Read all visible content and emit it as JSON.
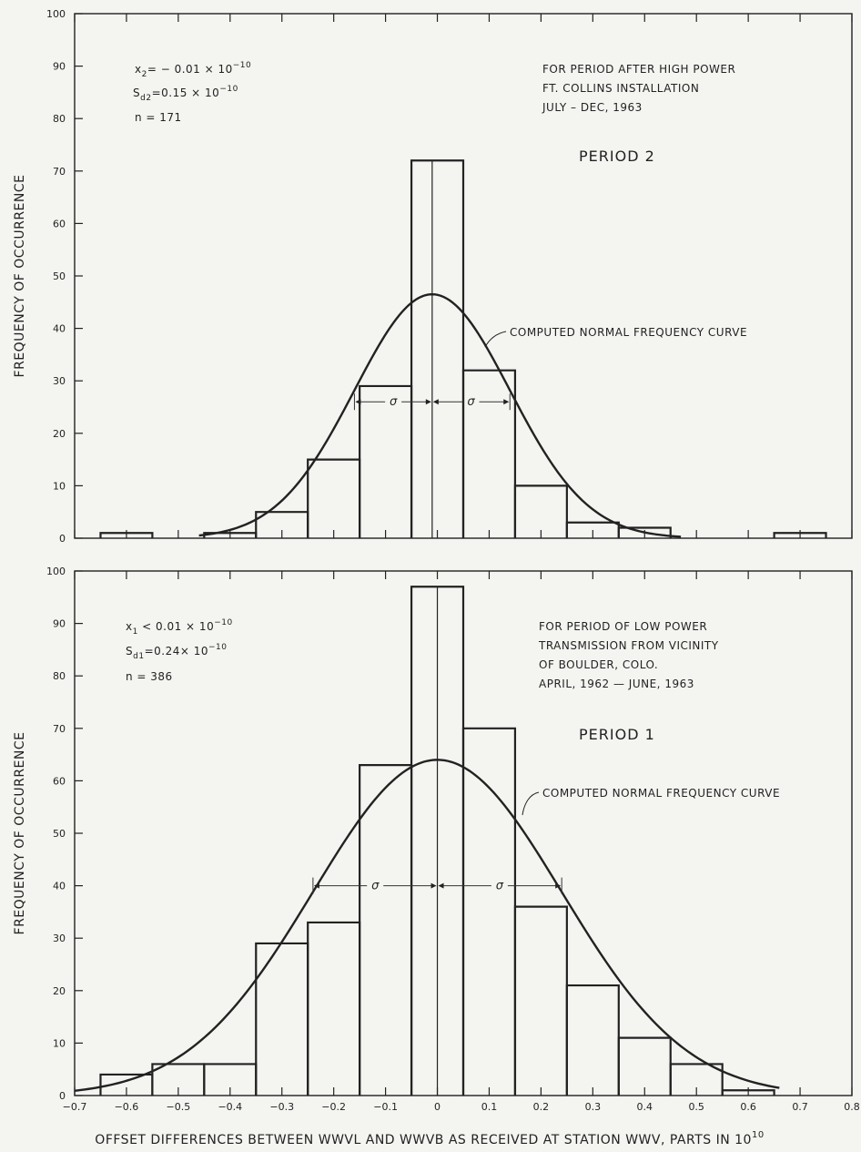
{
  "xlabel": "OFFSET DIFFERENCES BETWEEN WWVL AND WWVB AS RECEIVED AT STATION WWV, PARTS IN 10",
  "xlabel_exp": "10",
  "chart_data": [
    {
      "type": "bar",
      "title": "PERIOD 2",
      "ylabel": "FREQUENCY OF OCCURRENCE",
      "xlim": [
        -0.7,
        0.8
      ],
      "ylim": [
        0,
        100
      ],
      "xticks": [
        "-0.7",
        "-0.6",
        "-0.5",
        "-0.4",
        "-0.3",
        "-0.2",
        "-0.1",
        "0",
        "0.1",
        "0.2",
        "0.3",
        "0.4",
        "0.5",
        "0.6",
        "0.7",
        "0.8"
      ],
      "yticks": [
        "0",
        "10",
        "20",
        "30",
        "40",
        "50",
        "60",
        "70",
        "80",
        "90",
        "100"
      ],
      "bin_edges": [
        -0.65,
        -0.55,
        -0.45,
        -0.35,
        -0.25,
        -0.15,
        -0.05,
        0.05,
        0.15,
        0.25,
        0.35,
        0.45,
        0.55,
        0.65,
        0.75
      ],
      "values": [
        1,
        0,
        1,
        5,
        15,
        29,
        72,
        32,
        10,
        3,
        2,
        0,
        0,
        1
      ],
      "curve": {
        "label": "COMPUTED NORMAL FREQUENCY CURVE",
        "mean": -0.01,
        "sd": 0.15,
        "peak": 46.5,
        "range": [
          -0.46,
          0.47
        ]
      },
      "sigma_marker": {
        "label": "σ",
        "y": 26
      },
      "stats": {
        "mean_sym": "x",
        "mean_sub": "2",
        "mean_val": "= − 0.01 × 10",
        "mean_exp": "−10",
        "sd_sym": "S",
        "sd_sub": "d2",
        "sd_val": "=0.15 × 10",
        "sd_exp": "−10",
        "n": "n = 171"
      },
      "note": [
        "FOR PERIOD AFTER HIGH POWER",
        "FT. COLLINS INSTALLATION",
        "JULY – DEC, 1963"
      ]
    },
    {
      "type": "bar",
      "title": "PERIOD 1",
      "ylabel": "FREQUENCY OF OCCURRENCE",
      "xlim": [
        -0.7,
        0.8
      ],
      "ylim": [
        0,
        100
      ],
      "xticks": [
        "-0.7",
        "-0.6",
        "-0.5",
        "-0.4",
        "-0.3",
        "-0.2",
        "-0.1",
        "0",
        "0.1",
        "0.2",
        "0.3",
        "0.4",
        "0.5",
        "0.6",
        "0.7",
        "0.8"
      ],
      "yticks": [
        "0",
        "10",
        "20",
        "30",
        "40",
        "50",
        "60",
        "70",
        "80",
        "90",
        "100"
      ],
      "bin_edges": [
        -0.65,
        -0.55,
        -0.45,
        -0.35,
        -0.25,
        -0.15,
        -0.05,
        0.05,
        0.15,
        0.25,
        0.35,
        0.45,
        0.55,
        0.65
      ],
      "values": [
        4,
        6,
        6,
        29,
        33,
        63,
        97,
        70,
        36,
        21,
        11,
        6,
        1
      ],
      "curve": {
        "label": "COMPUTED NORMAL FREQUENCY CURVE",
        "mean": 0.0,
        "sd": 0.24,
        "peak": 64,
        "range": [
          -0.7,
          0.66
        ]
      },
      "sigma_marker": {
        "label": "σ",
        "y": 40
      },
      "stats": {
        "mean_sym": "x",
        "mean_sub": "1",
        "mean_val": " < 0.01 × 10",
        "mean_exp": "−10",
        "sd_sym": "S",
        "sd_sub": "d1",
        "sd_val": "=0.24× 10",
        "sd_exp": "−10",
        "n": "n = 386"
      },
      "note": [
        "FOR PERIOD OF LOW POWER",
        "TRANSMISSION FROM VICINITY",
        "OF BOULDER, COLO.",
        "APRIL, 1962 — JUNE, 1963"
      ]
    }
  ]
}
